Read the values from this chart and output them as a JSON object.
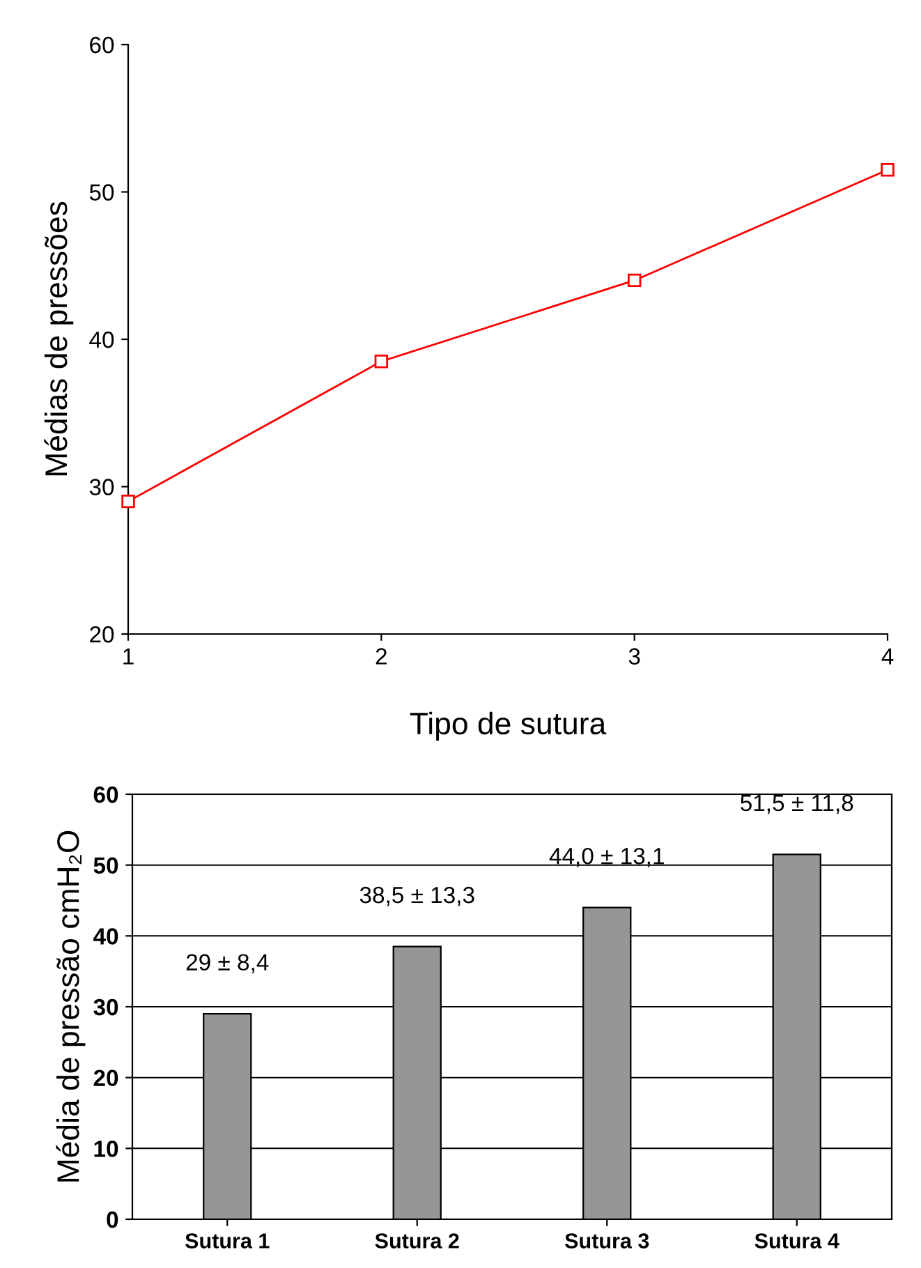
{
  "chart_data": [
    {
      "type": "line",
      "xlabel": "Tipo de sutura",
      "ylabel": "Médias de pressões",
      "x": [
        1,
        2,
        3,
        4
      ],
      "xlim": [
        1,
        4
      ],
      "xticks": [
        1,
        2,
        3,
        4
      ],
      "ylim": [
        20,
        60
      ],
      "yticks": [
        20,
        30,
        40,
        50,
        60
      ],
      "series": [
        {
          "color": "#ff0000",
          "values": [
            29,
            38.5,
            44,
            51.5
          ]
        }
      ],
      "marker": "square",
      "grid": false,
      "legend": false
    },
    {
      "type": "bar",
      "ylabel": "Média de pressão cmH₂O",
      "categories": [
        "Sutura 1",
        "Sutura 2",
        "Sutura 3",
        "Sutura 4"
      ],
      "ylim": [
        0,
        60
      ],
      "yticks": [
        0,
        10,
        20,
        30,
        40,
        50,
        60
      ],
      "series": [
        {
          "color": "#969696",
          "values": [
            29,
            38.5,
            44.0,
            51.5
          ],
          "value_labels": [
            "29 ± 8,4",
            "38,5 ± 13,3",
            "44,0 ± 13,1",
            "51,5 ± 11,8"
          ]
        }
      ],
      "grid": "y",
      "legend": false
    }
  ]
}
